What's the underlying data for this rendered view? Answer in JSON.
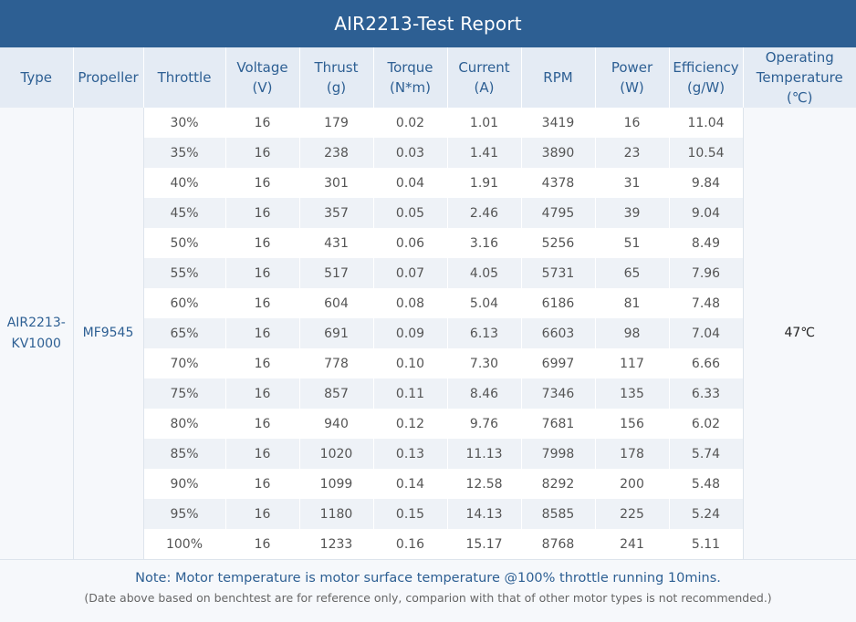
{
  "title": "AIR2213-Test Report",
  "columns": [
    {
      "lines": [
        "Type"
      ]
    },
    {
      "lines": [
        "Propeller"
      ]
    },
    {
      "lines": [
        "Throttle"
      ]
    },
    {
      "lines": [
        "Voltage",
        "(V)"
      ]
    },
    {
      "lines": [
        "Thrust",
        "(g)"
      ]
    },
    {
      "lines": [
        "Torque",
        "(N*m)"
      ]
    },
    {
      "lines": [
        "Current",
        "(A)"
      ]
    },
    {
      "lines": [
        "RPM"
      ]
    },
    {
      "lines": [
        "Power",
        "(W)"
      ]
    },
    {
      "lines": [
        "Efficiency",
        "(g/W)"
      ]
    },
    {
      "lines": [
        "Operating",
        "Temperature",
        "(℃)"
      ]
    }
  ],
  "motor_type": [
    "AIR2213-",
    "KV1000"
  ],
  "propeller": "MF9545",
  "operating_temperature": "47℃",
  "rows": [
    [
      "30%",
      "16",
      "179",
      "0.02",
      "1.01",
      "3419",
      "16",
      "11.04"
    ],
    [
      "35%",
      "16",
      "238",
      "0.03",
      "1.41",
      "3890",
      "23",
      "10.54"
    ],
    [
      "40%",
      "16",
      "301",
      "0.04",
      "1.91",
      "4378",
      "31",
      "9.84"
    ],
    [
      "45%",
      "16",
      "357",
      "0.05",
      "2.46",
      "4795",
      "39",
      "9.04"
    ],
    [
      "50%",
      "16",
      "431",
      "0.06",
      "3.16",
      "5256",
      "51",
      "8.49"
    ],
    [
      "55%",
      "16",
      "517",
      "0.07",
      "4.05",
      "5731",
      "65",
      "7.96"
    ],
    [
      "60%",
      "16",
      "604",
      "0.08",
      "5.04",
      "6186",
      "81",
      "7.48"
    ],
    [
      "65%",
      "16",
      "691",
      "0.09",
      "6.13",
      "6603",
      "98",
      "7.04"
    ],
    [
      "70%",
      "16",
      "778",
      "0.10",
      "7.30",
      "6997",
      "117",
      "6.66"
    ],
    [
      "75%",
      "16",
      "857",
      "0.11",
      "8.46",
      "7346",
      "135",
      "6.33"
    ],
    [
      "80%",
      "16",
      "940",
      "0.12",
      "9.76",
      "7681",
      "156",
      "6.02"
    ],
    [
      "85%",
      "16",
      "1020",
      "0.13",
      "11.13",
      "7998",
      "178",
      "5.74"
    ],
    [
      "90%",
      "16",
      "1099",
      "0.14",
      "12.58",
      "8292",
      "200",
      "5.48"
    ],
    [
      "95%",
      "16",
      "1180",
      "0.15",
      "14.13",
      "8585",
      "225",
      "5.24"
    ],
    [
      "100%",
      "16",
      "1233",
      "0.16",
      "15.17",
      "8768",
      "241",
      "5.11"
    ]
  ],
  "note": "Note: Motor temperature is motor surface temperature @100% throttle running 10mins.",
  "disclaimer": "(Date above based on benchtest are for reference only, comparion with that of other motor types is not recommended.)",
  "colors": {
    "header_bar": "#2d5f93",
    "header_row": "#e4ebf4",
    "stripe": "#eef2f7",
    "accent_text": "#2d5f93"
  }
}
